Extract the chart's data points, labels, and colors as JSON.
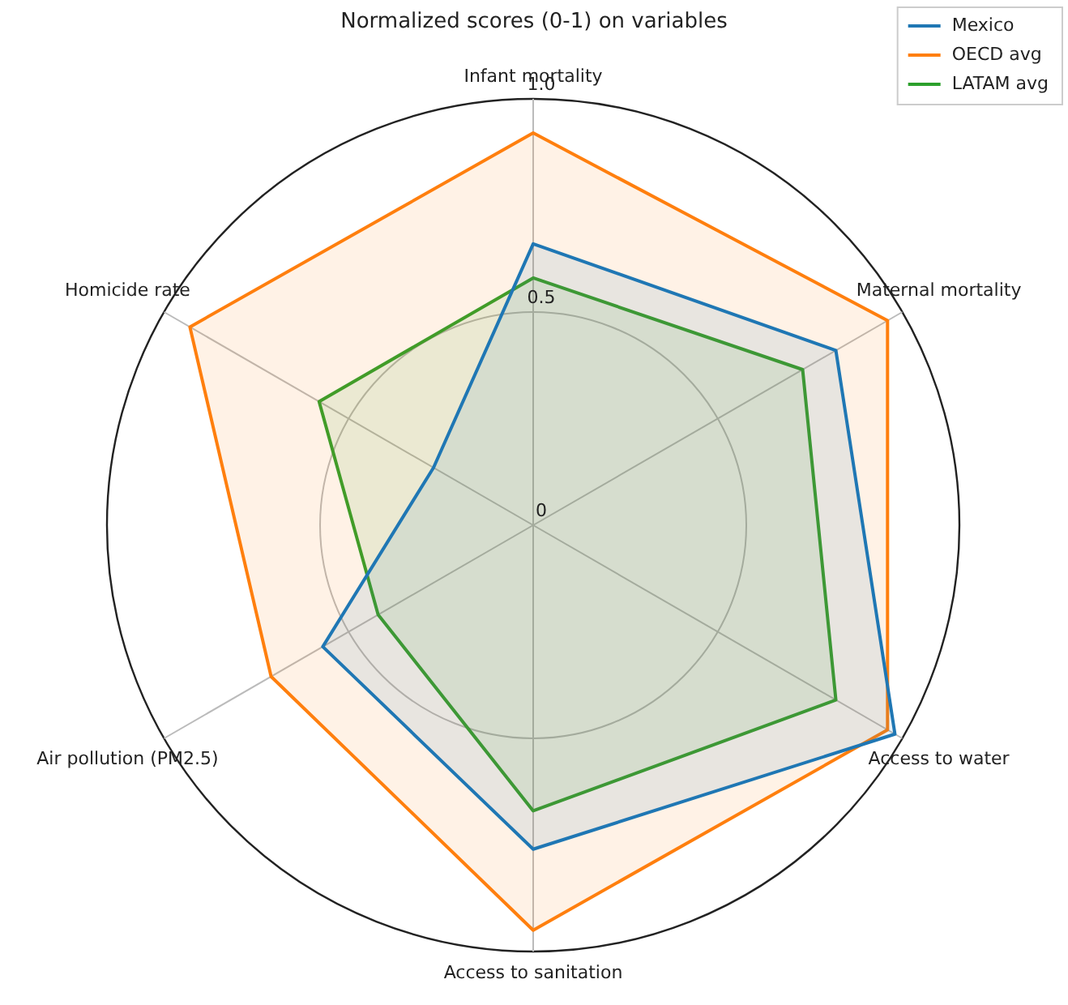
{
  "chart_data": {
    "type": "radar",
    "title": "Normalized scores (0-1) on variables",
    "categories": [
      "Infant mortality",
      "Maternal mortality",
      "Access to water",
      "Access to sanitation",
      "Air pollution (PM2.5)",
      "Homicide rate"
    ],
    "series": [
      {
        "name": "Mexico",
        "color": "#1f77b4",
        "values": [
          0.66,
          0.82,
          0.98,
          0.76,
          0.57,
          0.27
        ]
      },
      {
        "name": "OECD avg",
        "color": "#ff7f0e",
        "values": [
          0.92,
          0.96,
          0.96,
          0.95,
          0.71,
          0.93
        ]
      },
      {
        "name": "LATAM avg",
        "color": "#2ca02c",
        "values": [
          0.58,
          0.73,
          0.82,
          0.67,
          0.42,
          0.58
        ]
      }
    ],
    "ylim": [
      0,
      1
    ],
    "yticks": [
      0,
      0.5,
      {
        "value": 1,
        "label": "1.0"
      }
    ],
    "grid": true,
    "legend": "top right",
    "marker": "none",
    "line_style": "solid"
  }
}
